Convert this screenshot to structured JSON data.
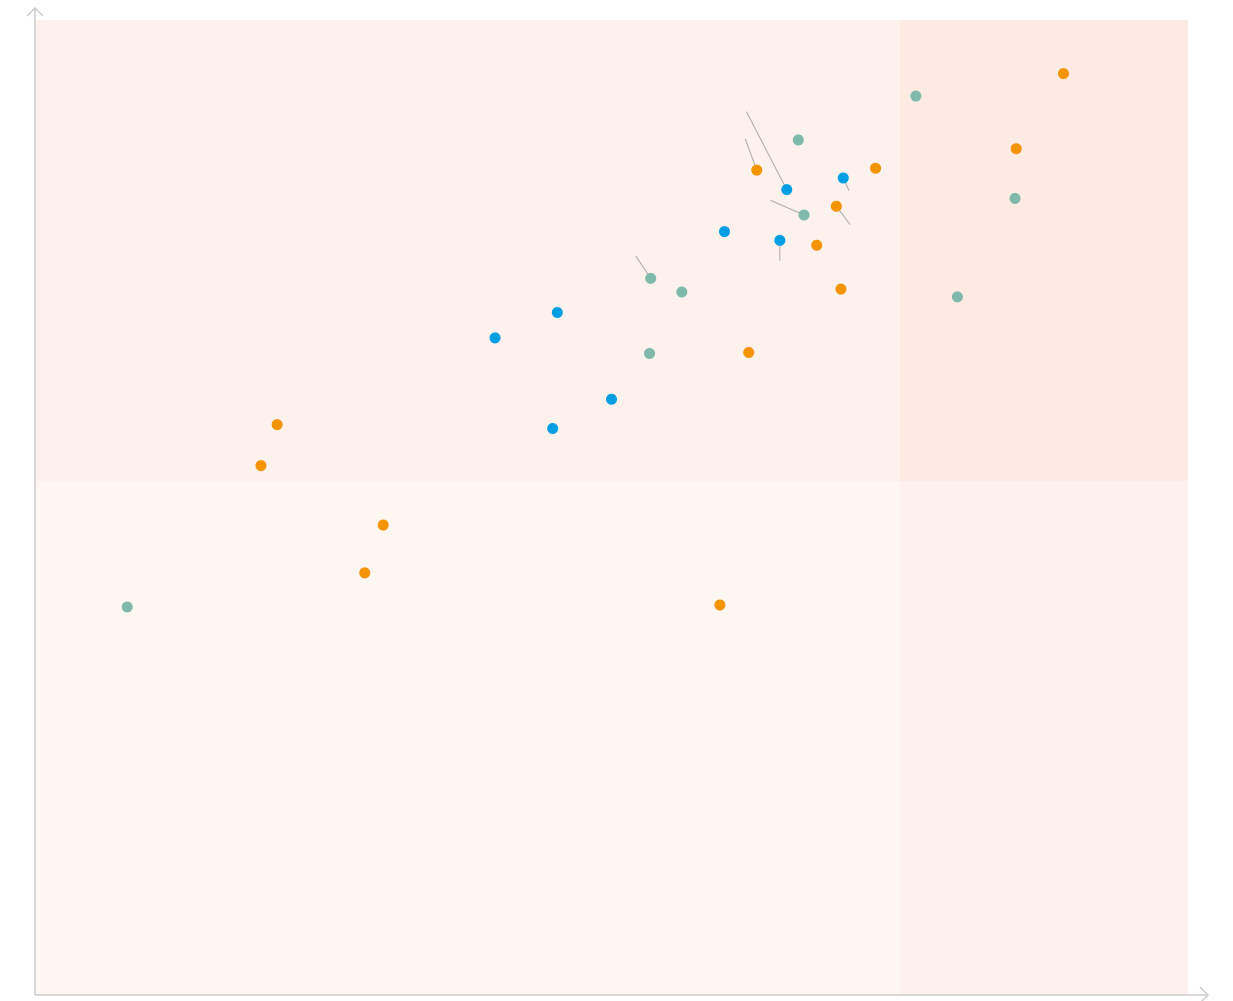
{
  "chart_data": {
    "type": "scatter",
    "title": "",
    "xlabel": "",
    "ylabel": "",
    "xlim": [
      0,
      100
    ],
    "ylim": [
      0,
      100
    ],
    "grid": false,
    "legend": "none",
    "quadrant_split": {
      "x": 75,
      "y": 52.7
    },
    "quadrant_colors": {
      "top_left": "#fcf1ec",
      "top_right": "#fdebe3",
      "bottom_left": "#fef6f1",
      "bottom_right": "#fcf1ec"
    },
    "axis_color": "#cccccc",
    "leader_line_color": "#aaaaaa",
    "series": [
      {
        "color": "#f39400",
        "points": [
          {
            "x": 21.0,
            "y": 58.5
          },
          {
            "x": 19.6,
            "y": 54.3
          },
          {
            "x": 30.2,
            "y": 48.2
          },
          {
            "x": 28.6,
            "y": 43.3
          },
          {
            "x": 59.4,
            "y": 40.0
          },
          {
            "x": 61.9,
            "y": 65.9
          },
          {
            "x": 62.6,
            "y": 84.6
          },
          {
            "x": 69.5,
            "y": 80.9
          },
          {
            "x": 67.8,
            "y": 76.9
          },
          {
            "x": 69.9,
            "y": 72.4
          },
          {
            "x": 72.9,
            "y": 84.8
          },
          {
            "x": 85.1,
            "y": 86.8
          },
          {
            "x": 89.2,
            "y": 94.5
          }
        ]
      },
      {
        "color": "#009fe3",
        "points": [
          {
            "x": 39.9,
            "y": 67.4
          },
          {
            "x": 45.3,
            "y": 70.0
          },
          {
            "x": 44.9,
            "y": 58.1
          },
          {
            "x": 50.0,
            "y": 61.1
          },
          {
            "x": 59.8,
            "y": 78.3
          },
          {
            "x": 64.6,
            "y": 77.4
          },
          {
            "x": 65.2,
            "y": 82.6
          },
          {
            "x": 70.1,
            "y": 83.8
          }
        ]
      },
      {
        "color": "#7fb9ab",
        "points": [
          {
            "x": 8.0,
            "y": 39.8
          },
          {
            "x": 53.4,
            "y": 73.5
          },
          {
            "x": 56.1,
            "y": 72.1
          },
          {
            "x": 53.3,
            "y": 65.8
          },
          {
            "x": 66.2,
            "y": 87.7
          },
          {
            "x": 66.7,
            "y": 80.0
          },
          {
            "x": 76.4,
            "y": 92.2
          },
          {
            "x": 80.0,
            "y": 71.6
          },
          {
            "x": 85.0,
            "y": 81.7
          }
        ]
      }
    ],
    "leader_lines": [
      {
        "from": {
          "x": 52.1,
          "y": 75.8
        },
        "to": {
          "x": 53.4,
          "y": 73.5
        }
      },
      {
        "from": {
          "x": 61.6,
          "y": 87.8
        },
        "to": {
          "x": 62.6,
          "y": 84.6
        }
      },
      {
        "from": {
          "x": 61.7,
          "y": 90.6
        },
        "to": {
          "x": 65.2,
          "y": 82.6
        }
      },
      {
        "from": {
          "x": 63.8,
          "y": 81.5
        },
        "to": {
          "x": 66.7,
          "y": 80.0
        }
      },
      {
        "from": {
          "x": 70.6,
          "y": 82.5
        },
        "to": {
          "x": 70.1,
          "y": 83.8
        }
      },
      {
        "from": {
          "x": 70.7,
          "y": 79.0
        },
        "to": {
          "x": 69.5,
          "y": 80.9
        }
      },
      {
        "from": {
          "x": 64.6,
          "y": 75.3
        },
        "to": {
          "x": 64.6,
          "y": 77.4
        }
      }
    ]
  }
}
